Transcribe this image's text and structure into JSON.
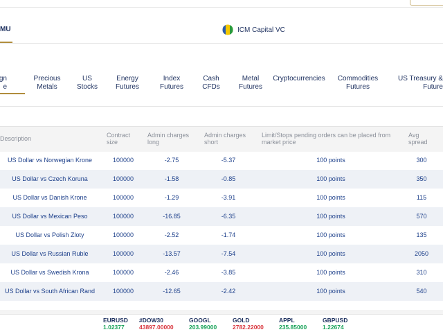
{
  "header": {
    "menu_label": "MU",
    "site": "ICM Capital VC"
  },
  "tabs": [
    {
      "lines": [
        "gn",
        "e"
      ]
    },
    {
      "lines": [
        "Precious",
        "Metals"
      ]
    },
    {
      "lines": [
        "US",
        "Stocks"
      ]
    },
    {
      "lines": [
        "Energy",
        "Futures"
      ]
    },
    {
      "lines": [
        "Index",
        "Futures"
      ]
    },
    {
      "lines": [
        "Cash",
        "CFDs"
      ]
    },
    {
      "lines": [
        "Metal",
        "Futures"
      ]
    },
    {
      "lines": [
        "Cryptocurrencies"
      ]
    },
    {
      "lines": [
        "Commodities",
        "Futures"
      ]
    },
    {
      "lines": [
        "US Treasury &",
        "Future"
      ]
    }
  ],
  "table": {
    "columns": [
      [
        "Description"
      ],
      [
        "Contract",
        "size"
      ],
      [
        "Admin charges",
        "long"
      ],
      [
        "Admin charges",
        "short"
      ],
      [
        "Limit/Stops pending orders can be placed from",
        "market price"
      ],
      [
        "Avg",
        "spread"
      ]
    ],
    "rows": [
      [
        "US Dollar vs Norwegian Krone",
        "100000",
        "-2.75",
        "-5.37",
        "100 points",
        "300"
      ],
      [
        "US Dollar vs Czech Koruna",
        "100000",
        "-1.58",
        "-0.85",
        "100 points",
        "350"
      ],
      [
        "US Dollar vs Danish Krone",
        "100000",
        "-1.29",
        "-3.91",
        "100 points",
        "115"
      ],
      [
        "US Dollar vs Mexican Peso",
        "100000",
        "-16.85",
        "-6.35",
        "100 points",
        "570"
      ],
      [
        "US Dollar vs Polish Zloty",
        "100000",
        "-2.52",
        "-1.74",
        "100 points",
        "135"
      ],
      [
        "US Dollar vs Russian Ruble",
        "100000",
        "-13.57",
        "-7.54",
        "100 points",
        "2050"
      ],
      [
        "US Dollar vs Swedish Krona",
        "100000",
        "-2.46",
        "-3.85",
        "100 points",
        "310"
      ],
      [
        "US Dollar vs South African Rand",
        "100000",
        "-12.65",
        "-2.42",
        "100 points",
        "540"
      ]
    ]
  },
  "ticker": [
    {
      "symbol": "EURUSD",
      "price": "1.02377",
      "color": "#1aa35a"
    },
    {
      "symbol": "#DOW30",
      "price": "43897.00000",
      "color": "#d9363e"
    },
    {
      "symbol": "GOOGL",
      "price": "203.99000",
      "color": "#1aa35a"
    },
    {
      "symbol": "GOLD",
      "price": "2782.22000",
      "color": "#d9363e"
    },
    {
      "symbol": "APPL",
      "price": "235.85000",
      "color": "#1aa35a"
    },
    {
      "symbol": "GBPUSD",
      "price": "1.22674",
      "color": "#1aa35a"
    }
  ]
}
